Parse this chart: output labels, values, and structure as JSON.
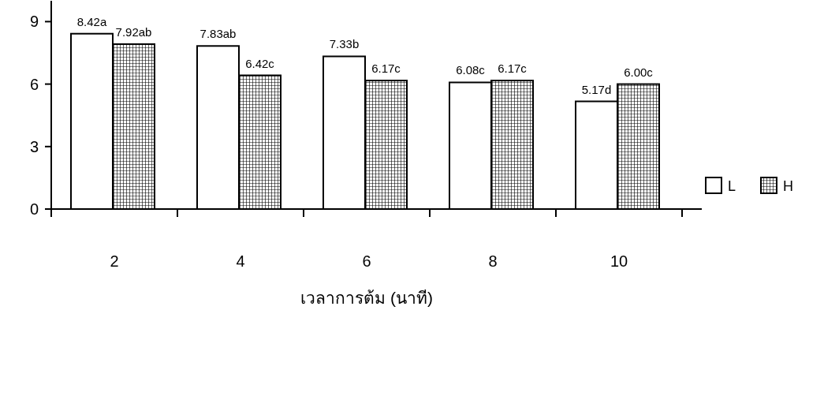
{
  "chart_data": {
    "type": "bar",
    "xlabel": "เวลาการต้ม (นาที)",
    "categories": [
      "2",
      "4",
      "6",
      "8",
      "10"
    ],
    "series": [
      {
        "name": "L",
        "color": "#ffffff",
        "values": [
          8.42,
          7.83,
          7.33,
          6.08,
          5.17
        ],
        "value_labels": [
          "8.42a",
          "7.83ab",
          "7.33b",
          "6.08c",
          "5.17d"
        ]
      },
      {
        "name": "H",
        "color": "#000000",
        "values": [
          7.92,
          6.42,
          6.17,
          6.17,
          6.0
        ],
        "value_labels": [
          "7.92ab",
          "6.42c",
          "6.17c",
          "6.17c",
          "6.00c"
        ]
      }
    ],
    "ylim": [
      0,
      10
    ],
    "yticks": [
      0,
      3,
      6,
      9
    ],
    "grid": false,
    "legend": "right"
  }
}
